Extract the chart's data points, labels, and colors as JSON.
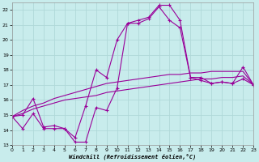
{
  "xlabel": "Windchill (Refroidissement éolien,°C)",
  "background_color": "#c8ecec",
  "grid_color": "#b0d8d8",
  "line_color": "#990099",
  "x_ticks": [
    0,
    1,
    2,
    3,
    4,
    5,
    6,
    7,
    8,
    9,
    10,
    11,
    12,
    13,
    14,
    15,
    16,
    17,
    18,
    19,
    20,
    21,
    22,
    23
  ],
  "y_ticks": [
    13,
    14,
    15,
    16,
    17,
    18,
    19,
    20,
    21,
    22
  ],
  "xlim": [
    0,
    23
  ],
  "ylim": [
    13,
    22.5
  ],
  "series_jagged1": [
    14.9,
    14.1,
    15.1,
    14.1,
    14.1,
    14.1,
    13.2,
    13.2,
    15.5,
    15.3,
    16.8,
    21.1,
    21.1,
    21.4,
    22.2,
    21.3,
    20.8,
    17.5,
    17.3,
    17.1,
    17.2,
    17.1,
    17.4,
    17.0
  ],
  "series_jagged2": [
    14.9,
    15.0,
    16.1,
    14.2,
    14.3,
    14.1,
    13.5,
    15.6,
    18.0,
    17.5,
    20.0,
    21.1,
    21.3,
    21.5,
    22.3,
    22.3,
    21.3,
    17.5,
    17.5,
    17.1,
    17.2,
    17.1,
    18.2,
    17.0
  ],
  "series_smooth1": [
    14.9,
    15.1,
    15.4,
    15.6,
    15.8,
    16.0,
    16.1,
    16.2,
    16.3,
    16.5,
    16.6,
    16.7,
    16.8,
    16.9,
    17.0,
    17.1,
    17.2,
    17.3,
    17.4,
    17.4,
    17.5,
    17.5,
    17.6,
    17.0
  ],
  "series_smooth2": [
    14.9,
    15.3,
    15.6,
    15.8,
    16.1,
    16.3,
    16.5,
    16.7,
    16.9,
    17.1,
    17.2,
    17.3,
    17.4,
    17.5,
    17.6,
    17.7,
    17.7,
    17.8,
    17.8,
    17.9,
    17.9,
    17.9,
    17.9,
    17.0
  ]
}
